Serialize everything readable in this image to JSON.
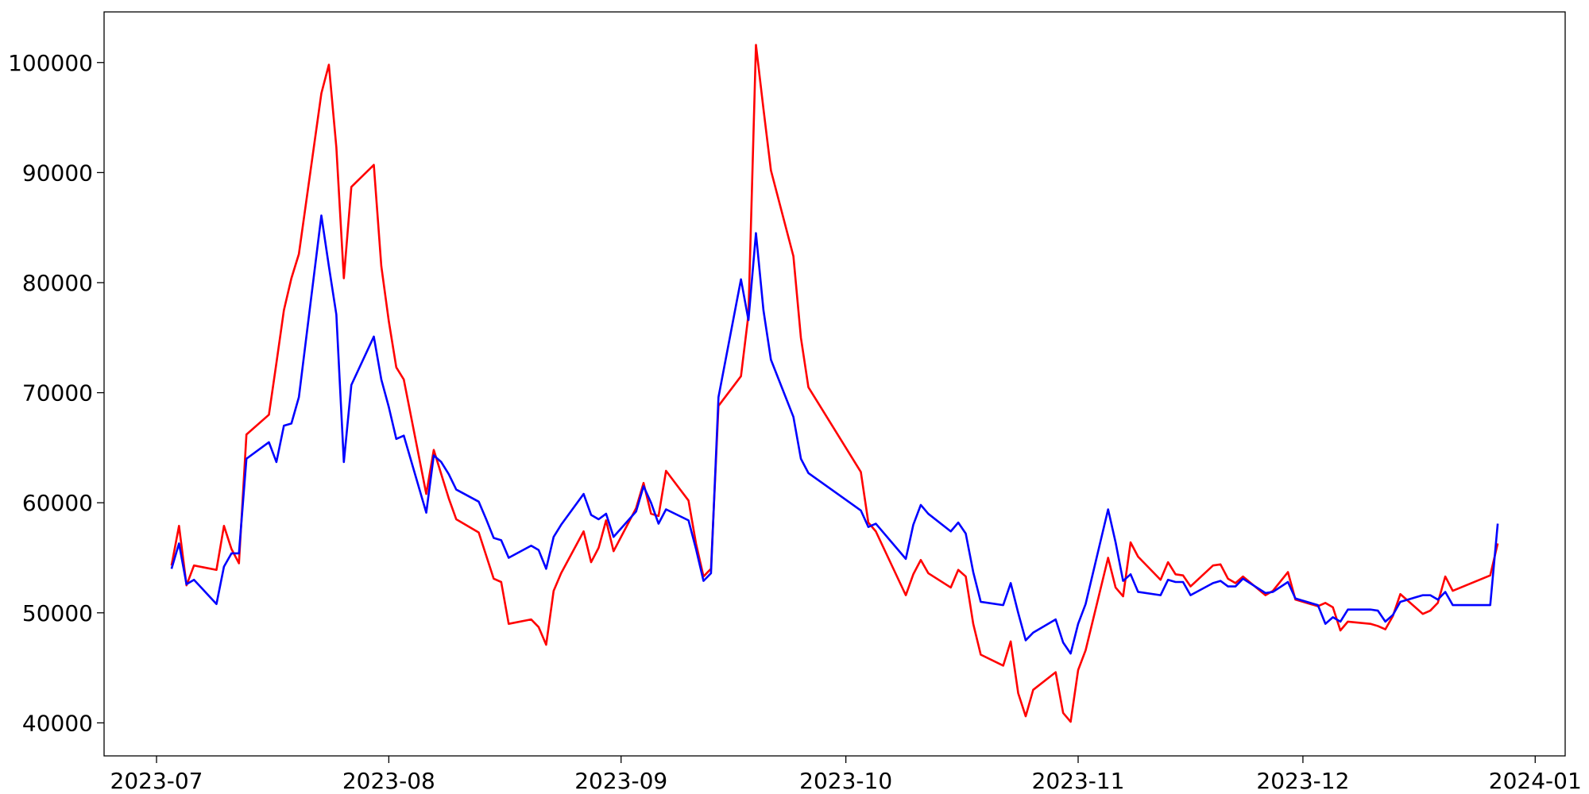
{
  "chart_data": {
    "type": "line",
    "x": [
      "2023-07-03",
      "2023-07-04",
      "2023-07-05",
      "2023-07-06",
      "2023-07-09",
      "2023-07-10",
      "2023-07-11",
      "2023-07-12",
      "2023-07-13",
      "2023-07-16",
      "2023-07-17",
      "2023-07-18",
      "2023-07-19",
      "2023-07-20",
      "2023-07-23",
      "2023-07-24",
      "2023-07-25",
      "2023-07-26",
      "2023-07-27",
      "2023-07-30",
      "2023-07-31",
      "2023-08-01",
      "2023-08-02",
      "2023-08-03",
      "2023-08-06",
      "2023-08-07",
      "2023-08-08",
      "2023-08-09",
      "2023-08-10",
      "2023-08-13",
      "2023-08-14",
      "2023-08-15",
      "2023-08-16",
      "2023-08-17",
      "2023-08-20",
      "2023-08-21",
      "2023-08-22",
      "2023-08-23",
      "2023-08-24",
      "2023-08-27",
      "2023-08-28",
      "2023-08-29",
      "2023-08-30",
      "2023-08-31",
      "2023-09-03",
      "2023-09-04",
      "2023-09-05",
      "2023-09-06",
      "2023-09-07",
      "2023-09-10",
      "2023-09-11",
      "2023-09-12",
      "2023-09-13",
      "2023-09-14",
      "2023-09-17",
      "2023-09-18",
      "2023-09-19",
      "2023-09-20",
      "2023-09-21",
      "2023-09-24",
      "2023-09-25",
      "2023-09-26",
      "2023-10-03",
      "2023-10-04",
      "2023-10-05",
      "2023-10-09",
      "2023-10-10",
      "2023-10-11",
      "2023-10-12",
      "2023-10-15",
      "2023-10-16",
      "2023-10-17",
      "2023-10-18",
      "2023-10-19",
      "2023-10-22",
      "2023-10-23",
      "2023-10-24",
      "2023-10-25",
      "2023-10-26",
      "2023-10-29",
      "2023-10-30",
      "2023-10-31",
      "2023-11-01",
      "2023-11-02",
      "2023-11-05",
      "2023-11-06",
      "2023-11-07",
      "2023-11-08",
      "2023-11-09",
      "2023-11-12",
      "2023-11-13",
      "2023-11-14",
      "2023-11-15",
      "2023-11-16",
      "2023-11-19",
      "2023-11-20",
      "2023-11-21",
      "2023-11-22",
      "2023-11-23",
      "2023-11-26",
      "2023-11-27",
      "2023-11-29",
      "2023-11-30",
      "2023-12-03",
      "2023-12-04",
      "2023-12-05",
      "2023-12-06",
      "2023-12-07",
      "2023-12-10",
      "2023-12-11",
      "2023-12-12",
      "2023-12-13",
      "2023-12-14",
      "2023-12-17",
      "2023-12-18",
      "2023-12-19",
      "2023-12-20",
      "2023-12-21",
      "2023-12-26",
      "2023-12-27"
    ],
    "series": [
      {
        "color": "#ff0000",
        "values": [
          54300,
          57900,
          52500,
          54300,
          53900,
          57900,
          55800,
          54500,
          66200,
          68000,
          72700,
          77500,
          80400,
          82600,
          97200,
          99800,
          92300,
          80400,
          88700,
          90700,
          81500,
          76500,
          72300,
          71200,
          60800,
          64800,
          62600,
          60400,
          58500,
          57300,
          55200,
          53100,
          52800,
          49000,
          49400,
          48700,
          47100,
          52000,
          53600,
          57400,
          54600,
          55900,
          58400,
          55600,
          59500,
          61800,
          59000,
          58800,
          62900,
          60200,
          56300,
          53300,
          54000,
          68800,
          71500,
          77100,
          101600,
          95800,
          90200,
          82400,
          75000,
          70500,
          62800,
          58200,
          57400,
          51600,
          53500,
          54800,
          53600,
          52300,
          53900,
          53300,
          49000,
          46200,
          45200,
          47400,
          42700,
          40600,
          43000,
          44600,
          40900,
          40100,
          44800,
          46600,
          55000,
          52300,
          51500,
          56400,
          55100,
          53000,
          54600,
          53500,
          53400,
          52400,
          54300,
          54400,
          53100,
          52700,
          53300,
          51600,
          52000,
          53700,
          51200,
          50600,
          50900,
          50500,
          48400,
          49200,
          49000,
          48800,
          48500,
          49700,
          51700,
          49900,
          50200,
          50900,
          53300,
          52000,
          53400,
          56300
        ]
      },
      {
        "color": "#0000ff",
        "values": [
          54000,
          56300,
          52600,
          53000,
          50800,
          54200,
          55400,
          55400,
          64000,
          65500,
          63700,
          67000,
          67200,
          69600,
          86100,
          81500,
          77100,
          63700,
          70700,
          75100,
          71200,
          68700,
          65800,
          66100,
          59100,
          64300,
          63700,
          62600,
          61200,
          60100,
          58500,
          56800,
          56600,
          55000,
          56100,
          55700,
          54000,
          56900,
          58000,
          60800,
          58900,
          58500,
          59000,
          56900,
          59200,
          61500,
          60000,
          58100,
          59400,
          58400,
          55800,
          52900,
          53600,
          69600,
          80300,
          76600,
          84500,
          77500,
          73000,
          67800,
          64000,
          62700,
          59300,
          57800,
          58100,
          54900,
          58000,
          59800,
          59000,
          57400,
          58200,
          57200,
          53700,
          51000,
          50700,
          52700,
          50000,
          47500,
          48200,
          49400,
          47300,
          46300,
          49000,
          50800,
          59400,
          56400,
          52900,
          53500,
          51900,
          51600,
          53000,
          52800,
          52800,
          51600,
          52700,
          52900,
          52400,
          52400,
          53100,
          51800,
          51900,
          52800,
          51300,
          50700,
          49000,
          49600,
          49200,
          50300,
          50300,
          50200,
          49200,
          49800,
          51000,
          51600,
          51600,
          51200,
          51900,
          50700,
          50700,
          58100
        ]
      }
    ],
    "xlim": [
      "2023-06-24",
      "2024-01-05"
    ],
    "xticks": [
      "2023-07",
      "2023-08",
      "2023-09",
      "2023-10",
      "2023-11",
      "2023-12",
      "2024-01"
    ],
    "ylim": [
      37000,
      104600
    ],
    "yticks": [
      40000,
      50000,
      60000,
      70000,
      80000,
      90000,
      100000
    ]
  }
}
